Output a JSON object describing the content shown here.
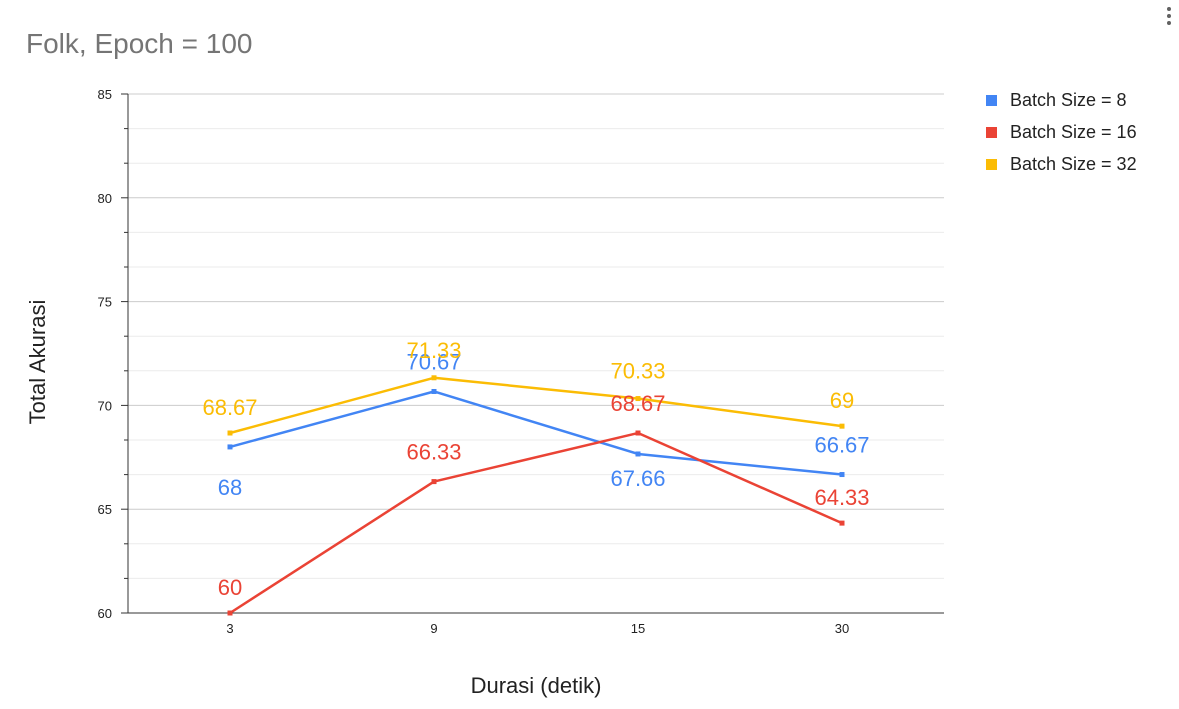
{
  "menu": {
    "icon": "more-vert-icon"
  },
  "chart_data": {
    "type": "line",
    "title": "Folk, Epoch = 100",
    "xlabel": "Durasi (detik)",
    "ylabel": "Total Akurasi",
    "categories": [
      "3",
      "9",
      "15",
      "30"
    ],
    "ylim": [
      60,
      85
    ],
    "yticks": [
      "60",
      "65",
      "70",
      "75",
      "80",
      "85"
    ],
    "grid": true,
    "legend_position": "right",
    "series": [
      {
        "name": "Batch Size = 8",
        "color": "#4285F4",
        "values": [
          68,
          70.67,
          67.66,
          66.67
        ],
        "labels": [
          "68",
          "70.67",
          "67.66",
          "66.67"
        ]
      },
      {
        "name": "Batch Size = 16",
        "color": "#EA4335",
        "values": [
          60,
          66.33,
          68.67,
          64.33
        ],
        "labels": [
          "60",
          "66.33",
          "68.67",
          "64.33"
        ]
      },
      {
        "name": "Batch Size = 32",
        "color": "#FBBC04",
        "values": [
          68.67,
          71.33,
          70.33,
          69
        ],
        "labels": [
          "68.67",
          "71.33",
          "70.33",
          "69"
        ]
      }
    ]
  }
}
